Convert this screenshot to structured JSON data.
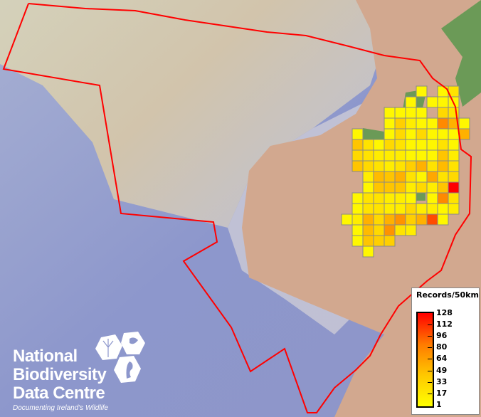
{
  "legend": {
    "title": "Records/50km",
    "labels": [
      "128",
      "112",
      "96",
      "80",
      "64",
      "49",
      "33",
      "17",
      "1"
    ],
    "color_low": "#ffff00",
    "color_high": "#ff0000"
  },
  "logo": {
    "line1": "National",
    "line2": "Biodiversity",
    "line3": "Data Centre",
    "tagline": "Documenting Ireland's Wildlife"
  },
  "boundary_color": "#ff0000",
  "grid_records": [
    [
      null,
      null,
      null,
      null,
      null,
      null,
      null,
      5,
      null,
      5,
      15,
      null
    ],
    [
      null,
      null,
      null,
      null,
      null,
      null,
      5,
      null,
      5,
      5,
      5,
      null
    ],
    [
      null,
      null,
      null,
      null,
      5,
      5,
      5,
      5,
      null,
      20,
      15,
      null
    ],
    [
      null,
      null,
      null,
      null,
      5,
      25,
      10,
      5,
      5,
      60,
      40,
      5
    ],
    [
      null,
      5,
      null,
      null,
      5,
      20,
      5,
      20,
      5,
      5,
      5,
      40
    ],
    [
      null,
      30,
      15,
      5,
      20,
      15,
      5,
      5,
      5,
      15,
      5,
      null
    ],
    [
      null,
      20,
      15,
      10,
      10,
      10,
      5,
      5,
      5,
      30,
      10,
      null
    ],
    [
      null,
      30,
      20,
      15,
      10,
      15,
      25,
      40,
      15,
      35,
      15,
      null
    ],
    [
      null,
      null,
      10,
      35,
      30,
      40,
      15,
      5,
      45,
      15,
      20,
      null
    ],
    [
      null,
      null,
      5,
      30,
      30,
      30,
      10,
      20,
      10,
      30,
      128,
      null
    ],
    [
      null,
      5,
      15,
      15,
      10,
      10,
      5,
      null,
      5,
      60,
      15,
      null
    ],
    [
      null,
      5,
      15,
      15,
      10,
      10,
      20,
      10,
      10,
      5,
      10,
      null
    ],
    [
      5,
      10,
      40,
      20,
      40,
      55,
      25,
      40,
      90,
      5,
      null,
      null
    ],
    [
      null,
      5,
      35,
      20,
      55,
      15,
      10,
      null,
      null,
      null,
      null,
      null
    ],
    [
      null,
      5,
      30,
      25,
      25,
      null,
      null,
      null,
      null,
      null,
      null,
      null
    ],
    [
      null,
      null,
      5,
      null,
      null,
      null,
      null,
      null,
      null,
      null,
      null,
      null
    ]
  ]
}
